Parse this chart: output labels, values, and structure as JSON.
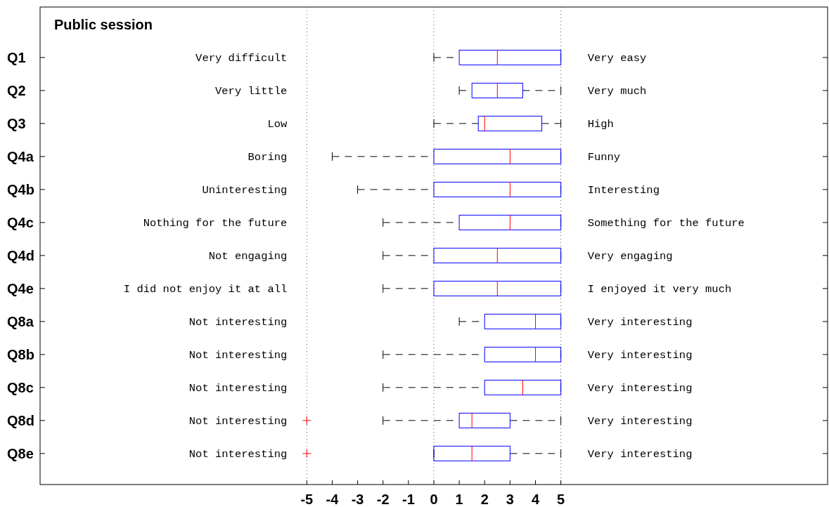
{
  "chart_data": {
    "type": "box",
    "orientation": "horizontal",
    "title": "Public session",
    "categories": [
      "Q1",
      "Q2",
      "Q3",
      "Q4a",
      "Q4b",
      "Q4c",
      "Q4d",
      "Q4e",
      "Q8a",
      "Q8b",
      "Q8c",
      "Q8d",
      "Q8e"
    ],
    "xlim": [
      -15.5,
      15.5
    ],
    "xticks": [
      -5,
      -4,
      -3,
      -2,
      -1,
      0,
      1,
      2,
      3,
      4,
      5
    ],
    "marker": "cross",
    "series": [
      {
        "color": "#0000ff",
        "boxes": [
          {
            "low": 0,
            "q1": 1,
            "median": 2.5,
            "q3": 5,
            "high": 5
          },
          {
            "low": 1,
            "q1": 1.5,
            "median": 2.5,
            "q3": 3.5,
            "high": 5
          },
          {
            "low": 0,
            "q1": 1.75,
            "median": 2,
            "q3": 4.25,
            "high": 5
          },
          {
            "low": -4,
            "q1": 0,
            "median": 3,
            "q3": 5,
            "high": 5
          },
          {
            "low": -3,
            "q1": 0,
            "median": 3,
            "q3": 5,
            "high": 5
          },
          {
            "low": -2,
            "q1": 1,
            "median": 3,
            "q3": 5,
            "high": 5
          },
          {
            "low": -2,
            "q1": 0,
            "median": 2.5,
            "q3": 5,
            "high": 5
          },
          {
            "low": -2,
            "q1": 0,
            "median": 2.5,
            "q3": 5,
            "high": 5
          },
          {
            "low": 1,
            "q1": 2,
            "median": 4,
            "q3": 5,
            "high": 5
          },
          {
            "low": -2,
            "q1": 2,
            "median": 4,
            "q3": 5,
            "high": 5
          },
          {
            "low": -2,
            "q1": 2,
            "median": 3.5,
            "q3": 5,
            "high": 5
          },
          {
            "low": -2,
            "q1": 1,
            "median": 1.5,
            "q3": 3,
            "high": 5,
            "outliers": [
              -5
            ]
          },
          {
            "low": 0,
            "q1": 0,
            "median": 1.5,
            "q3": 3,
            "high": 5,
            "outliers": [
              -5
            ]
          }
        ]
      }
    ],
    "ref_lines": [
      {
        "axis": "x",
        "value": -5,
        "color": "#555555",
        "line_style": "dotted"
      },
      {
        "axis": "x",
        "value": 0,
        "color": "#555555",
        "line_style": "dotted"
      },
      {
        "axis": "x",
        "value": 5,
        "color": "#555555",
        "line_style": "dotted"
      }
    ],
    "annotations": [
      "Very difficult",
      "Very easy",
      "Very little",
      "Very much",
      "Low",
      "High",
      "Boring",
      "Funny",
      "Uninteresting",
      "Interesting",
      "Nothing for the future",
      "Something for the future",
      "Not engaging",
      "Very engaging",
      "I did not enjoy it at all",
      "I enjoyed it very much",
      "Not interesting",
      "Very interesting",
      "Not interesting",
      "Very interesting",
      "Not interesting",
      "Very interesting",
      "Not interesting",
      "Very interesting",
      "Not interesting",
      "Very interesting"
    ]
  }
}
